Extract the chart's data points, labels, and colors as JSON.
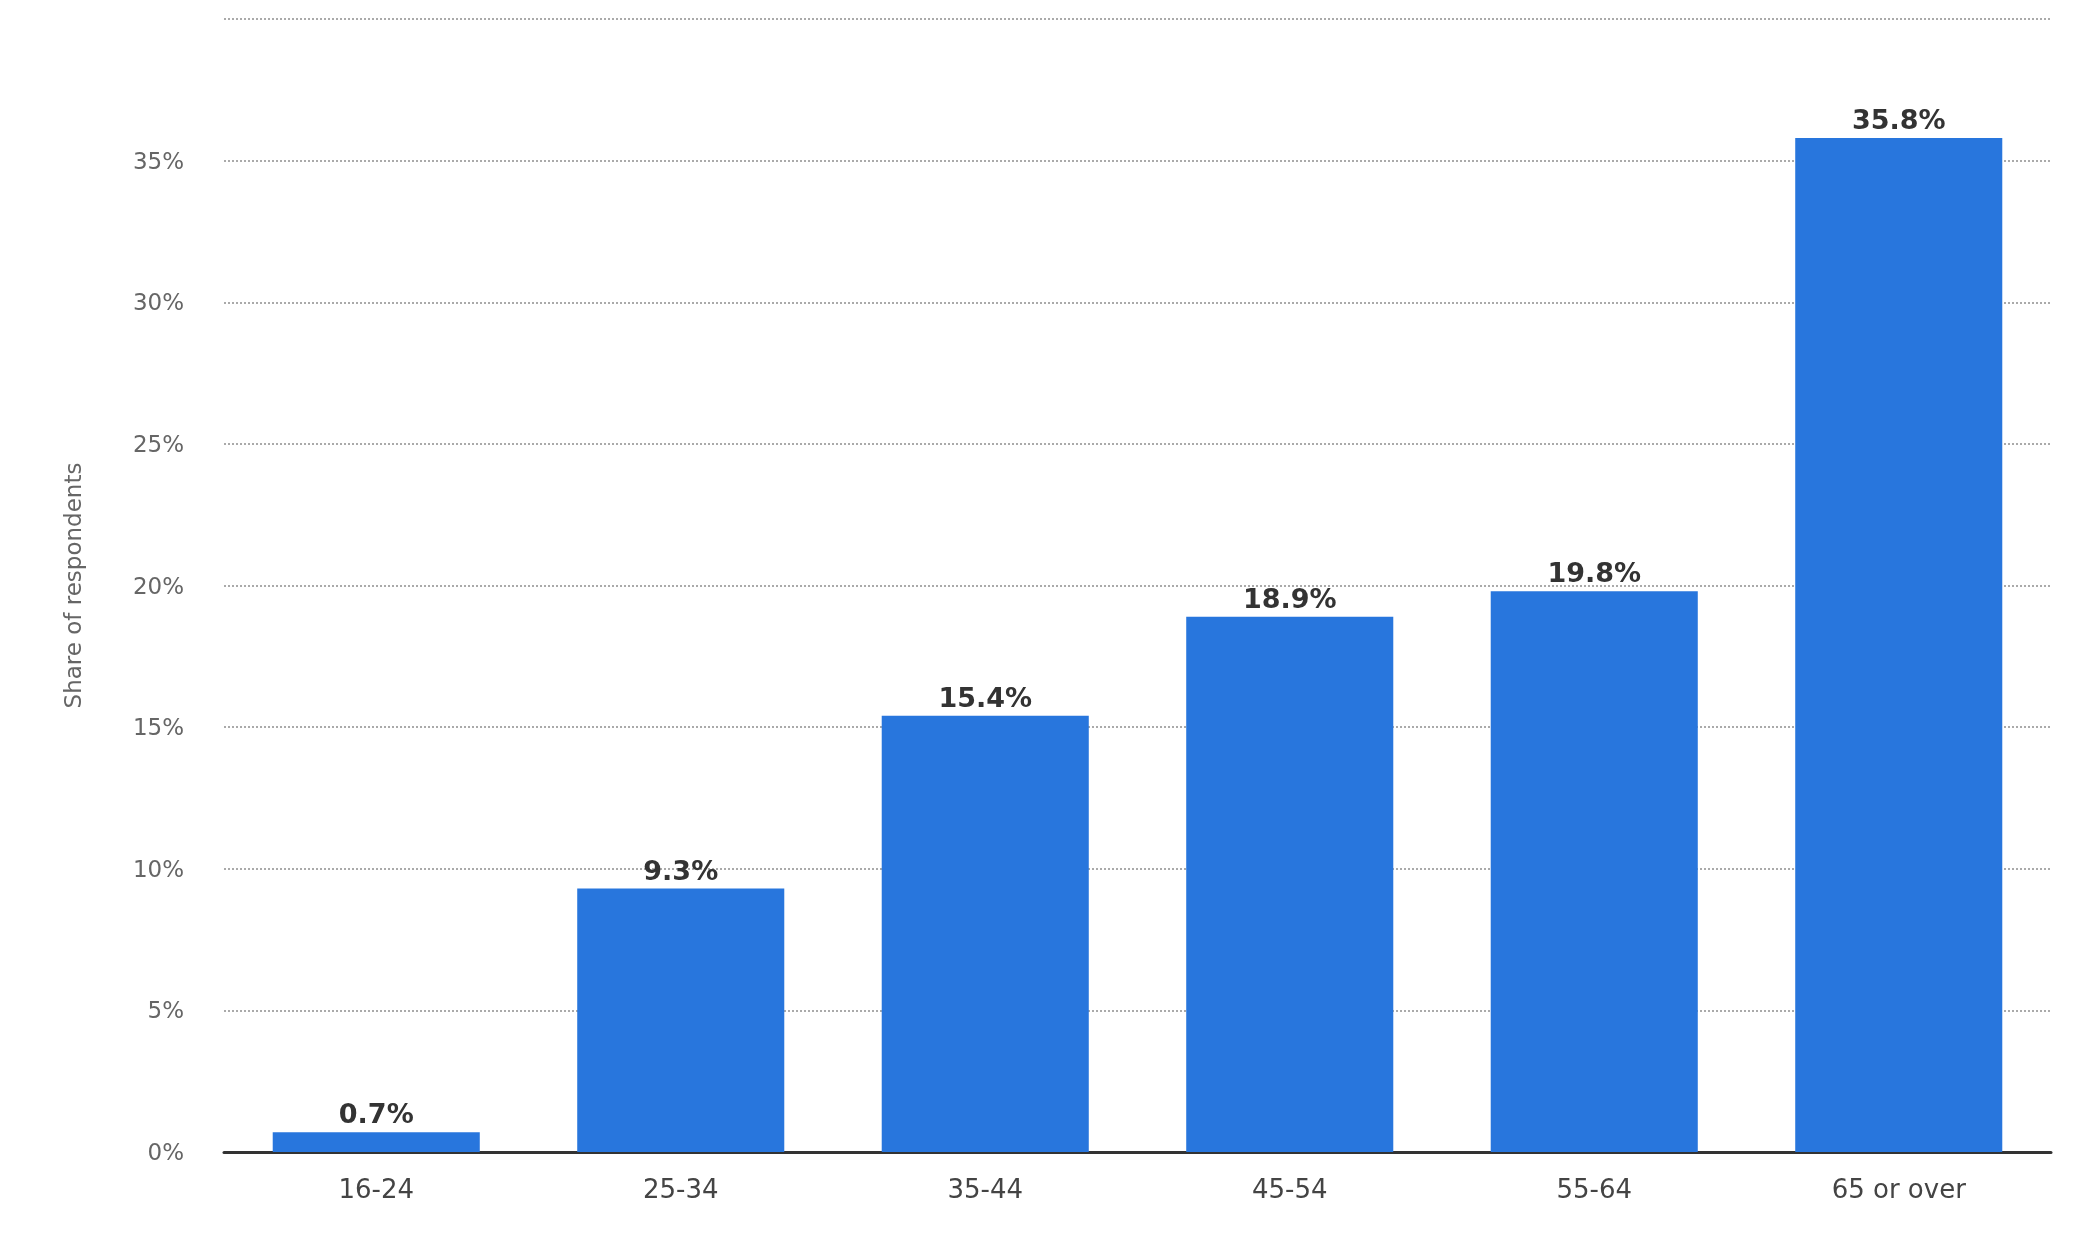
{
  "chart_data": {
    "type": "bar",
    "ylabel": "Share of respondents",
    "categories": [
      "16-24",
      "25-34",
      "35-44",
      "45-54",
      "55-64",
      "65 or over"
    ],
    "values": [
      0.7,
      9.3,
      15.4,
      18.9,
      19.8,
      35.8
    ],
    "value_labels": [
      "0.7%",
      "9.3%",
      "15.4%",
      "18.9%",
      "19.8%",
      "35.8%"
    ],
    "color": "#2876dd",
    "ylim": [
      0,
      40
    ],
    "yticks": [
      {
        "value": 0,
        "label": "0%"
      },
      {
        "value": 5,
        "label": "5%"
      },
      {
        "value": 10,
        "label": "10%"
      },
      {
        "value": 15,
        "label": "15%"
      },
      {
        "value": 20,
        "label": "20%"
      },
      {
        "value": 25,
        "label": "25%"
      },
      {
        "value": 30,
        "label": "30%"
      },
      {
        "value": 35,
        "label": "35%"
      },
      {
        "value": 40,
        "label": null
      }
    ],
    "grid": "y"
  }
}
